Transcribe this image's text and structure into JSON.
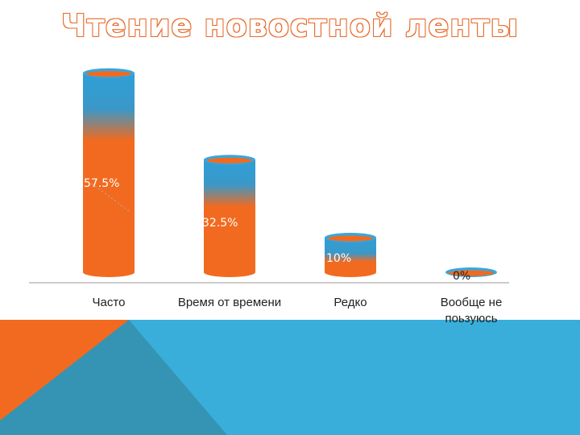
{
  "colors": {
    "bar_orange": "#f26a1f",
    "bar_blue": "#2f9fd6",
    "cap_blue": "#3aa6dc",
    "bg_blue": "#3aaedb",
    "bg_teal": "#3594b3",
    "bg_orange": "#f26a1f",
    "title_outline": "#e8692a"
  },
  "chart_data": {
    "type": "bar",
    "title": "Чтение новостной ленты",
    "categories": [
      "Часто",
      "Время от времени",
      "Редко",
      "Вообще не поьзуюсь"
    ],
    "values": [
      57.5,
      32.5,
      10,
      0
    ],
    "data_labels": [
      "57.5%",
      "32.5%",
      "10%",
      "0%"
    ],
    "ylim": [
      0,
      60
    ],
    "grid": false
  }
}
